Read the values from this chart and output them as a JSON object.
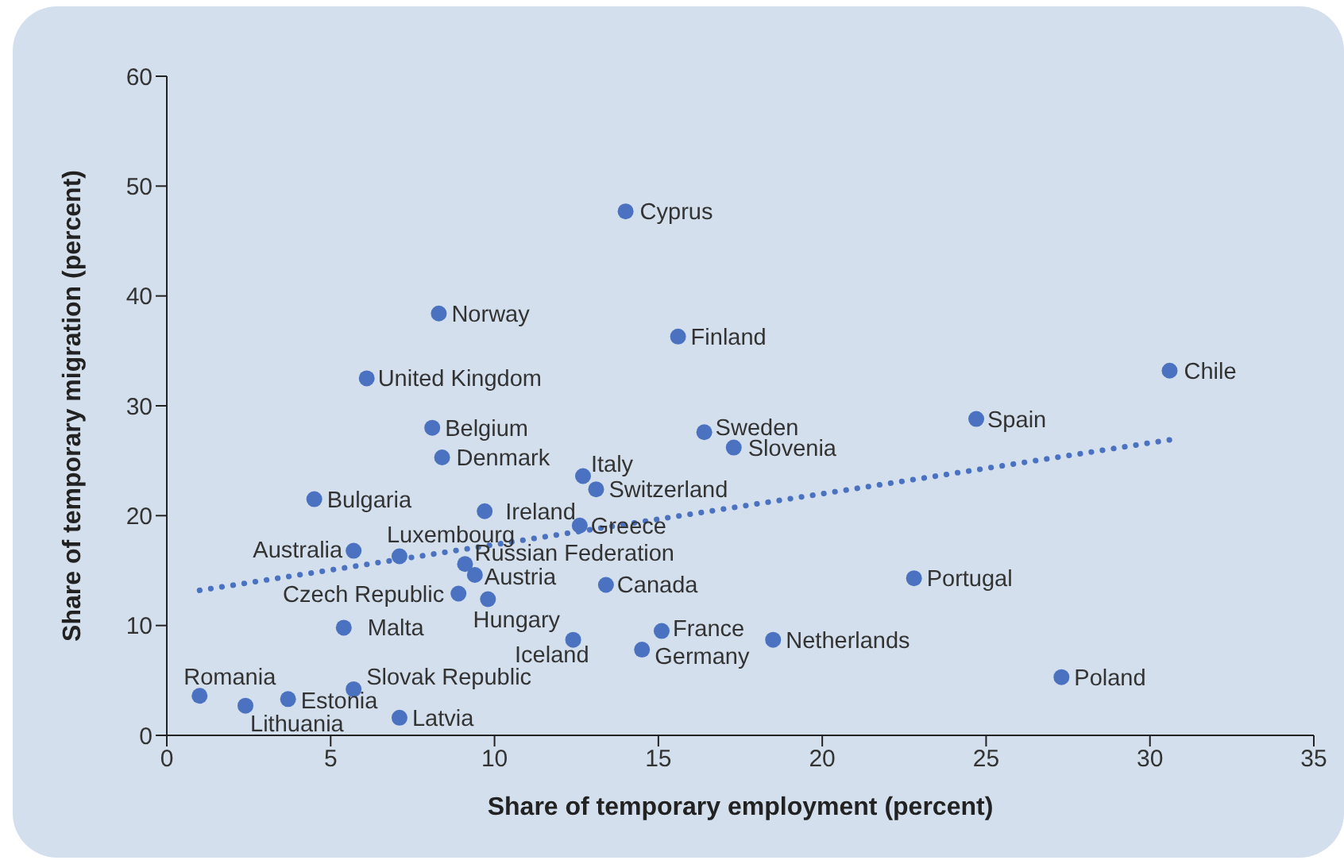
{
  "chart_data": {
    "type": "scatter",
    "xlabel": "Share of temporary employment (percent)",
    "ylabel": "Share of temporary migration (percent)",
    "xlim": [
      0,
      35
    ],
    "xticks": [
      0,
      5,
      10,
      15,
      20,
      25,
      30,
      35
    ],
    "ylim": [
      0,
      60
    ],
    "yticks": [
      0,
      10,
      20,
      30,
      40,
      50,
      60
    ],
    "grid": false,
    "legend": false,
    "marker": "circle",
    "series": [
      {
        "color": "#4a72c0",
        "x": [
          1.0,
          2.4,
          3.7,
          5.7,
          7.1,
          5.4,
          8.9,
          9.8,
          5.7,
          7.1,
          9.1,
          9.4,
          4.5,
          9.7,
          12.6,
          13.4,
          12.4,
          15.1,
          14.5,
          18.5,
          22.8,
          27.3,
          12.7,
          13.1,
          16.4,
          17.3,
          24.7,
          30.6,
          14.0,
          15.6,
          8.3,
          6.1,
          8.1,
          8.4
        ],
        "values": [
          3.6,
          2.7,
          3.3,
          4.2,
          1.6,
          9.8,
          12.9,
          12.4,
          16.8,
          16.3,
          15.6,
          14.6,
          21.5,
          20.4,
          19.1,
          13.7,
          8.7,
          9.5,
          7.8,
          8.7,
          14.3,
          5.3,
          23.6,
          22.4,
          27.6,
          26.2,
          28.8,
          33.2,
          47.7,
          36.3,
          38.4,
          32.5,
          28.0,
          25.3
        ]
      },
      {
        "type": "line",
        "color": "#4a72c0",
        "line_style": "dotted",
        "marker": "none",
        "x": [
          1.0,
          30.6
        ],
        "values": [
          13.2,
          26.9
        ]
      }
    ],
    "annotations": [
      {
        "text": "Romania",
        "x": 1.0,
        "y": 3.6
      },
      {
        "text": "Lithuania",
        "x": 2.4,
        "y": 2.7
      },
      {
        "text": "Estonia",
        "x": 3.7,
        "y": 3.3
      },
      {
        "text": "Slovak Republic",
        "x": 5.7,
        "y": 4.2
      },
      {
        "text": "Latvia",
        "x": 7.1,
        "y": 1.6
      },
      {
        "text": "Malta",
        "x": 5.4,
        "y": 9.8
      },
      {
        "text": "Czech Republic",
        "x": 8.9,
        "y": 12.9
      },
      {
        "text": "Hungary",
        "x": 9.8,
        "y": 12.4
      },
      {
        "text": "Australia",
        "x": 5.7,
        "y": 16.8
      },
      {
        "text": "Luxembourg",
        "x": 7.1,
        "y": 16.3
      },
      {
        "text": "Russian Federation",
        "x": 9.1,
        "y": 15.6
      },
      {
        "text": "Austria",
        "x": 9.4,
        "y": 14.6
      },
      {
        "text": "Bulgaria",
        "x": 4.5,
        "y": 21.5
      },
      {
        "text": "Ireland",
        "x": 9.7,
        "y": 20.4
      },
      {
        "text": "Greece",
        "x": 12.6,
        "y": 19.1
      },
      {
        "text": "Canada",
        "x": 13.4,
        "y": 13.7
      },
      {
        "text": "Iceland",
        "x": 12.4,
        "y": 8.7
      },
      {
        "text": "France",
        "x": 15.1,
        "y": 9.5
      },
      {
        "text": "Germany",
        "x": 14.5,
        "y": 7.8
      },
      {
        "text": "Netherlands",
        "x": 18.5,
        "y": 8.7
      },
      {
        "text": "Portugal",
        "x": 22.8,
        "y": 14.3
      },
      {
        "text": "Poland",
        "x": 27.3,
        "y": 5.3
      },
      {
        "text": "Italy",
        "x": 12.7,
        "y": 23.6
      },
      {
        "text": "Switzerland",
        "x": 13.1,
        "y": 22.4
      },
      {
        "text": "Sweden",
        "x": 16.4,
        "y": 27.6
      },
      {
        "text": "Slovenia",
        "x": 17.3,
        "y": 26.2
      },
      {
        "text": "Spain",
        "x": 24.7,
        "y": 28.8
      },
      {
        "text": "Chile",
        "x": 30.6,
        "y": 33.2
      },
      {
        "text": "Cyprus",
        "x": 14.0,
        "y": 47.7
      },
      {
        "text": "Finland",
        "x": 15.6,
        "y": 36.3
      },
      {
        "text": "Norway",
        "x": 8.3,
        "y": 38.4
      },
      {
        "text": "United Kingdom",
        "x": 6.1,
        "y": 32.5
      },
      {
        "text": "Belgium",
        "x": 8.1,
        "y": 28.0
      },
      {
        "text": "Denmark",
        "x": 8.4,
        "y": 25.3
      }
    ]
  }
}
